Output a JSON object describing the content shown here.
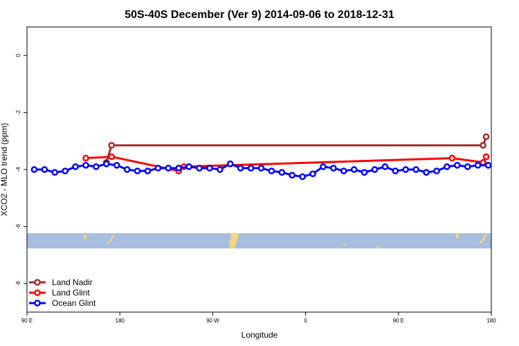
{
  "chart_data": {
    "type": "line",
    "title": "50S-40S December (Ver 9)   2014-09-06 to 2018-12-31",
    "xlabel": "Longitude",
    "ylabel": "XCO2 - MLO trend (ppm)",
    "xlim": [
      90,
      540
    ],
    "ylim": [
      -9,
      1
    ],
    "x_ticks": [
      {
        "value": 90,
        "label": "90 E"
      },
      {
        "value": 180,
        "label": "180"
      },
      {
        "value": 270,
        "label": "90 W"
      },
      {
        "value": 360,
        "label": "0"
      },
      {
        "value": 450,
        "label": "90 E"
      },
      {
        "value": 540,
        "label": "180"
      }
    ],
    "y_ticks": [
      {
        "value": 0,
        "label": "0"
      },
      {
        "value": -2,
        "label": "-2"
      },
      {
        "value": -4,
        "label": "-4"
      },
      {
        "value": -6,
        "label": "-6"
      },
      {
        "value": -8,
        "label": "-8"
      }
    ],
    "legend_position": "bottom-left",
    "series": [
      {
        "name": "Land Nadir",
        "color": "#a52a2a",
        "x": [
          167,
          172,
          532,
          535
        ],
        "y": [
          -3.75,
          -3.15,
          -3.15,
          -2.85
        ]
      },
      {
        "name": "Land Glint",
        "color": "#ff0000",
        "x": [
          147,
          172,
          237,
          242,
          502,
          532,
          535
        ],
        "y": [
          -3.6,
          -3.55,
          -4.05,
          -3.9,
          -3.6,
          -3.75,
          -3.55
        ]
      },
      {
        "name": "Ocean Glint",
        "color": "#0000ff",
        "x": [
          97,
          107,
          117,
          127,
          137,
          147,
          157,
          167,
          177,
          187,
          197,
          207,
          217,
          227,
          237,
          247,
          257,
          267,
          277,
          287,
          297,
          307,
          317,
          327,
          337,
          347,
          357,
          367,
          377,
          387,
          397,
          407,
          417,
          427,
          437,
          447,
          457,
          467,
          477,
          487,
          497,
          507,
          517,
          527,
          537
        ],
        "y": [
          -4.0,
          -4.0,
          -4.1,
          -4.05,
          -3.9,
          -3.85,
          -3.9,
          -3.8,
          -3.85,
          -4.0,
          -4.05,
          -4.05,
          -3.95,
          -3.95,
          -3.95,
          -3.9,
          -3.95,
          -3.95,
          -4.0,
          -3.8,
          -3.95,
          -3.95,
          -3.95,
          -4.05,
          -4.1,
          -4.2,
          -4.25,
          -4.15,
          -3.9,
          -3.95,
          -4.05,
          -4.0,
          -4.1,
          -4.0,
          -3.9,
          -4.05,
          -4.0,
          -4.0,
          -4.1,
          -4.05,
          -3.9,
          -3.85,
          -3.9,
          -3.85,
          -3.85
        ]
      }
    ]
  }
}
